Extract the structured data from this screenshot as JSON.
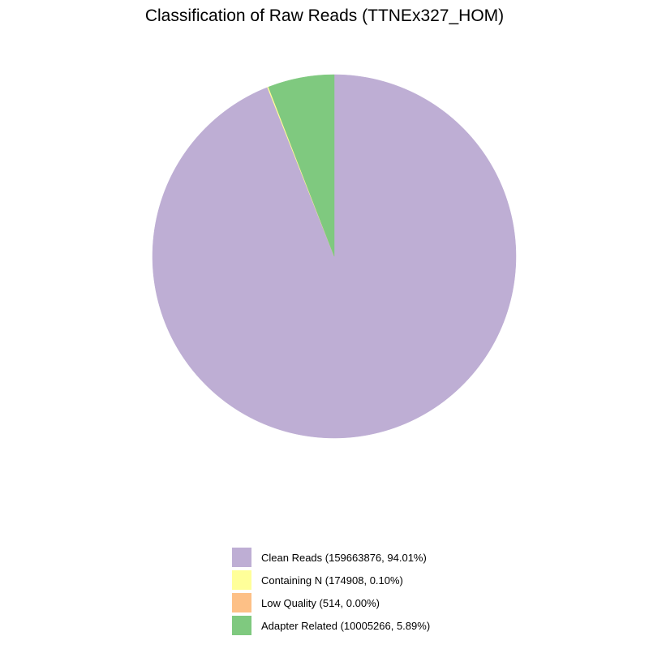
{
  "chart_data": {
    "type": "pie",
    "title": "Classification of Raw Reads (TTNEx327_HOM)",
    "start": "top",
    "direction": "clockwise",
    "legend_position": "bottom",
    "slices": [
      {
        "label": "Clean Reads (159663876, 94.01%)",
        "category": "Clean Reads",
        "count": 159663876,
        "percent": 94.01,
        "color": "#BEAED4"
      },
      {
        "label": "Containing N (174908, 0.10%)",
        "category": "Containing N",
        "count": 174908,
        "percent": 0.1,
        "color": "#FFFF99"
      },
      {
        "label": "Low Quality (514, 0.00%)",
        "category": "Low Quality",
        "count": 514,
        "percent": 0.0,
        "color": "#FDC086"
      },
      {
        "label": "Adapter Related (10005266, 5.89%)",
        "category": "Adapter Related",
        "count": 10005266,
        "percent": 5.89,
        "color": "#7FC97F"
      }
    ]
  }
}
